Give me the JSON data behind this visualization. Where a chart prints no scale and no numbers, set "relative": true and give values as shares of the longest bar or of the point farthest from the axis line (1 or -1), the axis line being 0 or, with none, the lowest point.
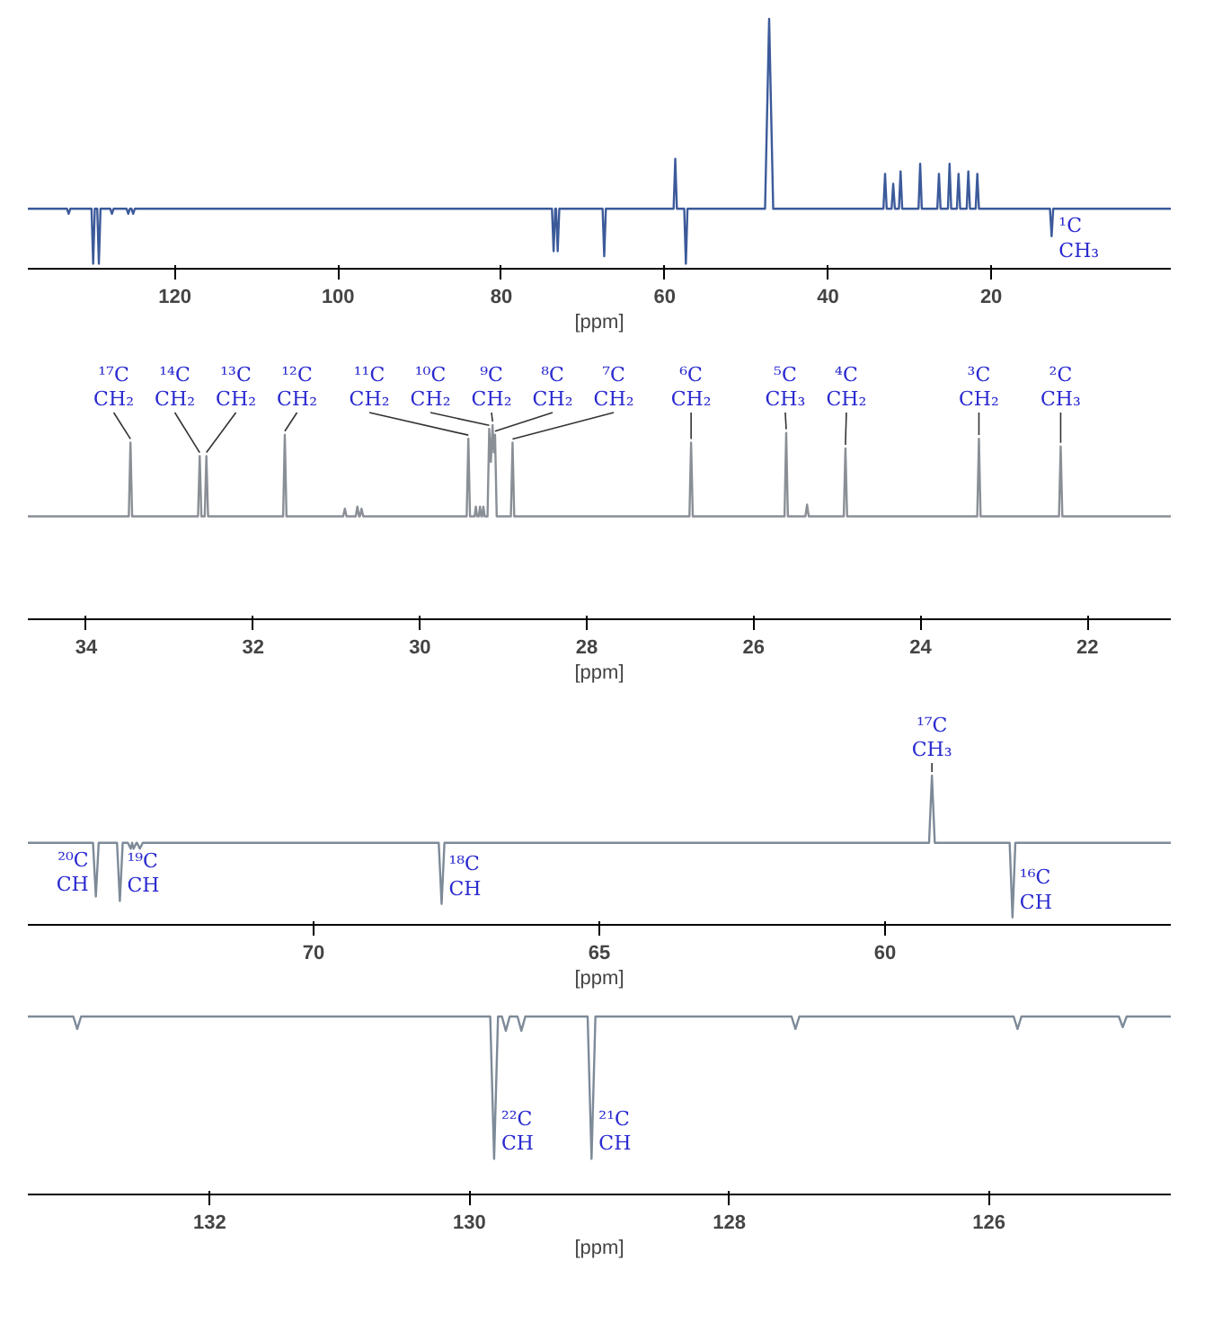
{
  "chart_data": [
    {
      "type": "line",
      "relative": true,
      "color": "#3c5a9a",
      "xlabel": "[ppm]",
      "xlim": [
        138,
        -2
      ],
      "xticks": [
        120,
        100,
        80,
        60,
        40,
        20
      ],
      "tick_labels": "x",
      "grid": false,
      "x": [
        138,
        133.2,
        133.0,
        132.8,
        130.2,
        130.0,
        129.8,
        129.5,
        129.3,
        129.1,
        127.9,
        127.7,
        127.5,
        125.9,
        125.7,
        125.5,
        125.3,
        125.1,
        124.9,
        73.8,
        73.6,
        73.4,
        73.3,
        73.1,
        72.9,
        67.6,
        67.4,
        67.2,
        58.9,
        58.7,
        58.5,
        57.6,
        57.4,
        57.2,
        47.7,
        47.2,
        46.7,
        33.2,
        33.0,
        32.8,
        32.2,
        32.0,
        31.8,
        31.3,
        31.1,
        30.9,
        28.9,
        28.7,
        28.5,
        26.6,
        26.4,
        26.2,
        25.3,
        25.1,
        24.9,
        24.2,
        24.0,
        23.8,
        23.0,
        22.8,
        22.6,
        21.9,
        21.7,
        21.5,
        12.8,
        12.6,
        12.4,
        -2
      ],
      "values": [
        0.24,
        0.24,
        0.22,
        0.24,
        0.24,
        0.02,
        0.24,
        0.24,
        0.02,
        0.24,
        0.24,
        0.22,
        0.24,
        0.24,
        0.22,
        0.24,
        0.24,
        0.22,
        0.24,
        0.24,
        0.07,
        0.24,
        0.24,
        0.07,
        0.24,
        0.24,
        0.05,
        0.24,
        0.24,
        0.44,
        0.24,
        0.24,
        0.02,
        0.24,
        0.24,
        1,
        0.24,
        0.24,
        0.38,
        0.24,
        0.24,
        0.34,
        0.24,
        0.24,
        0.39,
        0.24,
        0.24,
        0.42,
        0.24,
        0.24,
        0.38,
        0.24,
        0.24,
        0.42,
        0.24,
        0.24,
        0.38,
        0.24,
        0.24,
        0.39,
        0.24,
        0.24,
        0.38,
        0.24,
        0.24,
        0.13,
        0.24,
        0.24
      ],
      "annotations": [
        {
          "text": "¹C CH₃",
          "x": 12.6,
          "y": 0.13
        }
      ]
    },
    {
      "type": "line",
      "relative": true,
      "color": "#8a8f96",
      "xlabel": "[ppm]",
      "xlim": [
        34.7,
        21
      ],
      "xticks": [
        34,
        32,
        30,
        28,
        26,
        24,
        22
      ],
      "tick_labels": "x",
      "grid": false,
      "x": [
        34.7,
        33.49,
        33.47,
        33.45,
        32.66,
        32.64,
        32.62,
        32.58,
        32.56,
        32.54,
        31.64,
        31.62,
        31.6,
        30.92,
        30.9,
        30.88,
        30.77,
        30.75,
        30.73,
        30.72,
        30.7,
        30.68,
        29.44,
        29.42,
        29.4,
        29.345,
        29.33,
        29.315,
        29.295,
        29.28,
        29.265,
        29.255,
        29.24,
        29.225,
        29.19,
        29.17,
        29.15,
        29.13,
        29.115,
        29.1,
        29.08,
        28.91,
        28.89,
        28.87,
        26.77,
        26.75,
        26.73,
        25.63,
        25.61,
        25.59,
        25.38,
        25.36,
        25.34,
        24.92,
        24.9,
        24.88,
        23.32,
        23.3,
        23.28,
        22.34,
        22.32,
        22.3,
        21
      ],
      "values": [
        0.53,
        0.53,
        0.91,
        0.53,
        0.53,
        0.84,
        0.53,
        0.53,
        0.84,
        0.53,
        0.53,
        0.95,
        0.53,
        0.53,
        0.57,
        0.53,
        0.53,
        0.58,
        0.53,
        0.53,
        0.57,
        0.53,
        0.53,
        0.93,
        0.53,
        0.53,
        0.58,
        0.53,
        0.53,
        0.58,
        0.53,
        0.53,
        0.58,
        0.53,
        0.53,
        0.98,
        0.81,
        1,
        0.86,
        0.95,
        0.53,
        0.53,
        0.91,
        0.53,
        0.53,
        0.91,
        0.53,
        0.53,
        0.96,
        0.53,
        0.53,
        0.59,
        0.53,
        0.53,
        0.88,
        0.53,
        0.53,
        0.93,
        0.53,
        0.53,
        0.89,
        0.53,
        0.53
      ],
      "annotations": [
        {
          "text": "¹⁷C CH₂",
          "x": 33.47,
          "y": 0.91
        },
        {
          "text": "¹⁴C CH₂",
          "x": 32.64,
          "y": 0.84
        },
        {
          "text": "¹³C CH₂",
          "x": 32.56,
          "y": 0.84
        },
        {
          "text": "¹²C CH₂",
          "x": 31.62,
          "y": 0.95
        },
        {
          "text": "¹¹C CH₂",
          "x": 29.42,
          "y": 0.93
        },
        {
          "text": "¹⁰C CH₂",
          "x": 29.17,
          "y": 0.98
        },
        {
          "text": "⁹C CH₂",
          "x": 29.13,
          "y": 1
        },
        {
          "text": "⁸C CH₂",
          "x": 29.1,
          "y": 0.95
        },
        {
          "text": "⁷C CH₂",
          "x": 28.89,
          "y": 0.91
        },
        {
          "text": "⁶C CH₂",
          "x": 26.75,
          "y": 0.91
        },
        {
          "text": "⁵C CH₃",
          "x": 25.61,
          "y": 0.96
        },
        {
          "text": "⁴C CH₂",
          "x": 24.9,
          "y": 0.88
        },
        {
          "text": "³C CH₂",
          "x": 23.3,
          "y": 0.93
        },
        {
          "text": "²C CH₃",
          "x": 22.32,
          "y": 0.89
        }
      ]
    },
    {
      "type": "line",
      "relative": true,
      "color": "#7d8a98",
      "xlabel": "[ppm]",
      "xlim": [
        75,
        55
      ],
      "xticks": [
        70,
        65,
        60
      ],
      "tick_labels": "x",
      "grid": false,
      "x": [
        75,
        73.86,
        73.81,
        73.76,
        73.44,
        73.39,
        73.34,
        73.25,
        73.2,
        73.175,
        73.15,
        73.1,
        73.09,
        73.04,
        72.99,
        67.81,
        67.76,
        67.71,
        59.23,
        59.18,
        59.13,
        57.82,
        57.77,
        57.72,
        55
      ],
      "values": [
        0.55,
        0.55,
        0.19,
        0.55,
        0.55,
        0.16,
        0.55,
        0.55,
        0.51,
        0.55,
        0.51,
        0.55,
        0.55,
        0.51,
        0.55,
        0.55,
        0.14,
        0.55,
        0.55,
        1,
        0.55,
        0.55,
        0.05,
        0.55,
        0.55
      ],
      "annotations": [
        {
          "text": "²⁰C CH",
          "x": 73.81,
          "y": 0.19
        },
        {
          "text": "¹⁹C CH",
          "x": 73.39,
          "y": 0.16
        },
        {
          "text": "¹⁸C CH",
          "x": 67.76,
          "y": 0.14
        },
        {
          "text": "¹⁷C CH₃",
          "x": 59.18,
          "y": 1
        },
        {
          "text": "¹⁶C CH",
          "x": 57.77,
          "y": 0.05
        }
      ]
    },
    {
      "type": "line",
      "relative": true,
      "color": "#7d8a98",
      "xlabel": "[ppm]",
      "xlim": [
        133.4,
        124.6
      ],
      "xticks": [
        132,
        130,
        128,
        126
      ],
      "tick_labels": "x",
      "grid": false,
      "x": [
        133.4,
        133.05,
        133.02,
        132.99,
        129.84,
        129.81,
        129.78,
        129.75,
        129.72,
        129.69,
        129.63,
        129.6,
        129.57,
        129.09,
        129.06,
        129.03,
        127.52,
        127.49,
        127.46,
        125.81,
        125.78,
        125.75,
        125.0,
        124.97,
        124.94,
        124.6
      ],
      "values": [
        1,
        1,
        0.93,
        1,
        1,
        0.2,
        1,
        1,
        0.92,
        1,
        1,
        0.92,
        1,
        1,
        0.2,
        1,
        1,
        0.93,
        1,
        1,
        0.93,
        1,
        1,
        0.94,
        1,
        1
      ],
      "annotations": [
        {
          "text": "²²C CH",
          "x": 129.81,
          "y": 0.2
        },
        {
          "text": "²¹C CH",
          "x": 129.06,
          "y": 0.2
        }
      ]
    }
  ]
}
